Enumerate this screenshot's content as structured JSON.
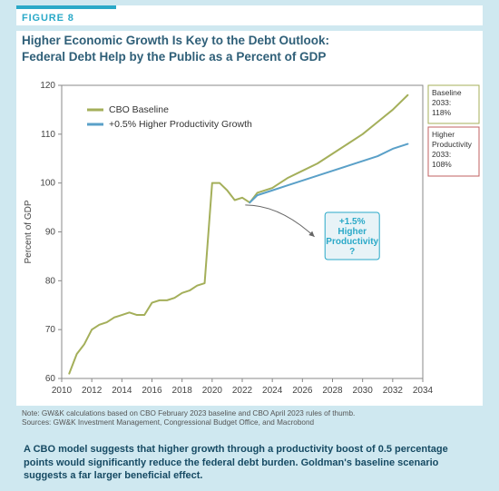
{
  "figure_label": "FIGURE 8",
  "title_line1": "Higher Economic Growth Is Key to the Debt Outlook:",
  "title_line2": "Federal Debt Help by the Public as a Percent of GDP",
  "note1": "Note: GW&K calculations based on CBO February 2023 baseline and CBO April 2023 rules of thumb.",
  "note2": "Sources: GW&K Investment Management, Congressional Budget Office, and Macrobond",
  "caption": "A CBO model suggests that higher growth through a productivity boost of 0.5 percentage points would significantly reduce the federal debt burden. Goldman's baseline scenario suggests a far larger beneficial effect.",
  "chart": {
    "type": "line",
    "xlim": [
      2010,
      2034
    ],
    "ylim": [
      60,
      120
    ],
    "xtick_step": 2,
    "ytick_step": 10,
    "ylabel": "Percent of GDP",
    "background_color": "#ffffff",
    "axis_color": "#888888",
    "axis_width": 1,
    "legend": {
      "items": [
        {
          "label": "CBO Baseline",
          "color": "#a4af5a"
        },
        {
          "label": "+0.5% Higher Productivity Growth",
          "color": "#5aa0c8"
        }
      ]
    },
    "series": [
      {
        "name": "CBO Baseline",
        "color": "#a4af5a",
        "width": 2,
        "data": [
          [
            2010.5,
            61
          ],
          [
            2011,
            65
          ],
          [
            2011.5,
            67
          ],
          [
            2012,
            70
          ],
          [
            2012.5,
            71
          ],
          [
            2013,
            71.5
          ],
          [
            2013.5,
            72.5
          ],
          [
            2014,
            73
          ],
          [
            2014.5,
            73.5
          ],
          [
            2015,
            73
          ],
          [
            2015.5,
            73
          ],
          [
            2016,
            75.5
          ],
          [
            2016.5,
            76
          ],
          [
            2017,
            76
          ],
          [
            2017.5,
            76.5
          ],
          [
            2018,
            77.5
          ],
          [
            2018.5,
            78
          ],
          [
            2019,
            79
          ],
          [
            2019.5,
            79.5
          ],
          [
            2020,
            100
          ],
          [
            2020.5,
            100
          ],
          [
            2021,
            98.5
          ],
          [
            2021.5,
            96.5
          ],
          [
            2022,
            97
          ],
          [
            2022.5,
            96
          ],
          [
            2023,
            98
          ],
          [
            2024,
            99
          ],
          [
            2025,
            101
          ],
          [
            2026,
            102.5
          ],
          [
            2027,
            104
          ],
          [
            2028,
            106
          ],
          [
            2029,
            108
          ],
          [
            2030,
            110
          ],
          [
            2031,
            112.5
          ],
          [
            2032,
            115
          ],
          [
            2033,
            118
          ]
        ]
      },
      {
        "name": "+0.5% Higher Productivity Growth",
        "color": "#5aa0c8",
        "width": 2,
        "data": [
          [
            2022.5,
            96
          ],
          [
            2023,
            97.5
          ],
          [
            2024,
            98.5
          ],
          [
            2025,
            99.5
          ],
          [
            2026,
            100.5
          ],
          [
            2027,
            101.5
          ],
          [
            2028,
            102.5
          ],
          [
            2029,
            103.5
          ],
          [
            2030,
            104.5
          ],
          [
            2031,
            105.5
          ],
          [
            2032,
            107
          ],
          [
            2033,
            108
          ]
        ]
      }
    ],
    "callout": {
      "lines": [
        "+1.5%",
        "Higher",
        "Productivity",
        "?"
      ],
      "box_color": "#e8f3f7",
      "border_color": "#2aa9c8",
      "text_color": "#2aa9c8",
      "arrow": {
        "from": [
          2022.2,
          95.5
        ],
        "to": [
          2026.8,
          89
        ]
      }
    },
    "side_annotations": [
      {
        "lines": [
          "Baseline",
          "2033:",
          "118%"
        ],
        "border_color": "#a4af5a",
        "y_anchor": 118
      },
      {
        "lines": [
          "Higher",
          "Productivity",
          "2033:",
          "108%"
        ],
        "border_color": "#c06060",
        "y_anchor": 106
      }
    ]
  }
}
